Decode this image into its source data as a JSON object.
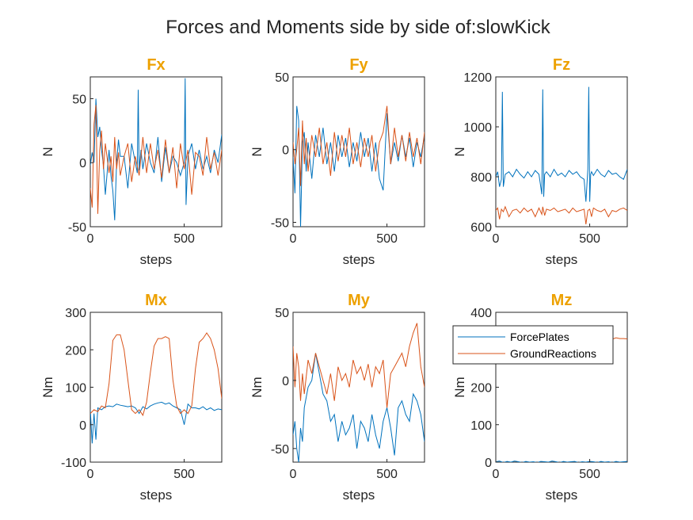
{
  "figure": {
    "title": "Forces and Moments side by side of:slowKick"
  },
  "colors": {
    "force_plates": "#0072BD",
    "ground_reactions": "#D95319",
    "subplot_title": "#EDA100",
    "axis": "#262626"
  },
  "legend": {
    "placement": "inside Mz subplot, upper-left",
    "entries": [
      "ForcePlates",
      "GroundReactions"
    ]
  },
  "chart_data": [
    {
      "type": "line",
      "title": "Fx",
      "xlabel": "steps",
      "ylabel": "N",
      "xlim": [
        0,
        700
      ],
      "ylim": [
        -50,
        67
      ],
      "xticks": [
        "0",
        "500"
      ],
      "xtick_values": [
        0,
        500
      ],
      "yticks": [
        "-50",
        "0",
        "50"
      ],
      "ytick_values": [
        -50,
        0,
        50
      ],
      "series": [
        {
          "name": "ForcePlates",
          "x": [
            0,
            10,
            20,
            30,
            40,
            50,
            60,
            70,
            80,
            100,
            110,
            120,
            130,
            140,
            150,
            160,
            180,
            200,
            220,
            240,
            250,
            255,
            260,
            270,
            280,
            300,
            320,
            340,
            360,
            380,
            400,
            420,
            440,
            460,
            480,
            500,
            505,
            510,
            520,
            540,
            560,
            580,
            600,
            620,
            640,
            660,
            680,
            700
          ],
          "y": [
            -2,
            8,
            0,
            50,
            20,
            28,
            10,
            -2,
            -25,
            10,
            -10,
            -22,
            -45,
            0,
            18,
            5,
            5,
            -20,
            15,
            0,
            -8,
            57,
            -6,
            10,
            -5,
            15,
            0,
            -8,
            20,
            -15,
            12,
            -8,
            5,
            0,
            -10,
            0,
            66,
            -33,
            5,
            15,
            -5,
            10,
            -5,
            5,
            -8,
            10,
            0,
            22
          ]
        },
        {
          "name": "GroundReactions",
          "x": [
            0,
            10,
            20,
            30,
            40,
            50,
            60,
            70,
            80,
            100,
            110,
            120,
            130,
            140,
            150,
            160,
            180,
            200,
            220,
            240,
            260,
            280,
            300,
            320,
            340,
            360,
            380,
            400,
            420,
            440,
            460,
            480,
            500,
            520,
            540,
            560,
            580,
            600,
            620,
            640,
            660,
            680,
            700
          ],
          "y": [
            -20,
            -35,
            30,
            45,
            -40,
            10,
            25,
            -5,
            15,
            -8,
            5,
            -15,
            20,
            -5,
            8,
            -10,
            5,
            15,
            -15,
            5,
            -10,
            20,
            -8,
            15,
            -5,
            10,
            -12,
            18,
            -8,
            12,
            -20,
            15,
            -5,
            10,
            -25,
            8,
            5,
            -10,
            20,
            -5,
            8,
            -10,
            10
          ]
        }
      ]
    },
    {
      "type": "line",
      "title": "Fy",
      "xlabel": "steps",
      "ylabel": "N",
      "xlim": [
        0,
        700
      ],
      "ylim": [
        -53,
        50
      ],
      "xticks": [
        "0",
        "500"
      ],
      "xtick_values": [
        0,
        500
      ],
      "yticks": [
        "-50",
        "0",
        "50"
      ],
      "ytick_values": [
        -50,
        0,
        50
      ],
      "series": [
        {
          "name": "ForcePlates",
          "x": [
            0,
            10,
            20,
            30,
            40,
            50,
            60,
            70,
            80,
            100,
            120,
            140,
            160,
            180,
            200,
            220,
            240,
            260,
            280,
            300,
            320,
            340,
            360,
            380,
            400,
            420,
            440,
            460,
            480,
            500,
            520,
            540,
            560,
            580,
            600,
            620,
            640,
            660,
            680,
            700
          ],
          "y": [
            -5,
            -30,
            30,
            20,
            -53,
            5,
            12,
            -15,
            5,
            -20,
            10,
            -5,
            15,
            -10,
            5,
            -15,
            10,
            -5,
            8,
            -12,
            5,
            -8,
            12,
            -5,
            8,
            -15,
            5,
            -20,
            -28,
            25,
            -10,
            5,
            -8,
            10,
            -5,
            8,
            -12,
            5,
            -5,
            10
          ]
        },
        {
          "name": "GroundReactions",
          "x": [
            0,
            10,
            20,
            30,
            40,
            50,
            60,
            70,
            80,
            100,
            120,
            140,
            160,
            180,
            200,
            220,
            240,
            260,
            280,
            300,
            320,
            340,
            360,
            380,
            400,
            420,
            440,
            460,
            480,
            500,
            520,
            540,
            560,
            580,
            600,
            620,
            640,
            660,
            680,
            700
          ],
          "y": [
            5,
            -10,
            0,
            15,
            -25,
            20,
            -10,
            8,
            -15,
            10,
            -5,
            15,
            -10,
            5,
            -18,
            12,
            -8,
            10,
            -5,
            15,
            -10,
            5,
            -12,
            8,
            -5,
            10,
            -15,
            5,
            12,
            30,
            -10,
            15,
            -5,
            10,
            -8,
            12,
            -5,
            8,
            -10,
            12
          ]
        }
      ]
    },
    {
      "type": "line",
      "title": "Fz",
      "xlabel": "steps",
      "ylabel": "N",
      "xlim": [
        0,
        700
      ],
      "ylim": [
        600,
        1200
      ],
      "xticks": [
        "0",
        "500"
      ],
      "xtick_values": [
        0,
        500
      ],
      "yticks": [
        "600",
        "800",
        "1000",
        "1200"
      ],
      "ytick_values": [
        600,
        800,
        1000,
        1200
      ],
      "series": [
        {
          "name": "ForcePlates",
          "x": [
            0,
            10,
            20,
            30,
            35,
            40,
            50,
            70,
            90,
            110,
            130,
            150,
            170,
            190,
            210,
            230,
            245,
            250,
            255,
            260,
            270,
            290,
            310,
            330,
            350,
            370,
            390,
            410,
            430,
            450,
            470,
            480,
            490,
            495,
            500,
            505,
            510,
            520,
            540,
            560,
            580,
            600,
            620,
            640,
            660,
            680,
            700
          ],
          "y": [
            800,
            820,
            760,
            790,
            1140,
            760,
            810,
            820,
            800,
            830,
            810,
            795,
            820,
            800,
            825,
            810,
            730,
            1150,
            720,
            810,
            820,
            800,
            830,
            805,
            815,
            800,
            825,
            810,
            820,
            800,
            790,
            700,
            830,
            1160,
            700,
            810,
            820,
            805,
            830,
            810,
            800,
            825,
            810,
            815,
            800,
            790,
            830
          ]
        },
        {
          "name": "GroundReactions",
          "x": [
            0,
            10,
            20,
            30,
            40,
            50,
            70,
            90,
            110,
            130,
            150,
            170,
            190,
            210,
            230,
            245,
            250,
            260,
            270,
            290,
            310,
            330,
            350,
            370,
            390,
            410,
            430,
            450,
            470,
            480,
            490,
            500,
            510,
            520,
            540,
            560,
            580,
            600,
            620,
            640,
            660,
            680,
            700
          ],
          "y": [
            665,
            675,
            630,
            670,
            660,
            680,
            640,
            665,
            670,
            655,
            675,
            660,
            670,
            640,
            675,
            650,
            680,
            645,
            670,
            665,
            675,
            660,
            665,
            670,
            655,
            675,
            660,
            665,
            670,
            610,
            665,
            670,
            640,
            675,
            665,
            660,
            670,
            640,
            665,
            660,
            670,
            675,
            665
          ]
        }
      ]
    },
    {
      "type": "line",
      "title": "Mx",
      "xlabel": "steps",
      "ylabel": "Nm",
      "xlim": [
        0,
        700
      ],
      "ylim": [
        -100,
        300
      ],
      "xticks": [
        "0",
        "500"
      ],
      "xtick_values": [
        0,
        500
      ],
      "yticks": [
        "-100",
        "0",
        "100",
        "200",
        "300"
      ],
      "ytick_values": [
        -100,
        0,
        100,
        200,
        300
      ],
      "series": [
        {
          "name": "ForcePlates",
          "x": [
            0,
            10,
            20,
            30,
            40,
            60,
            80,
            100,
            120,
            140,
            160,
            180,
            200,
            220,
            240,
            260,
            280,
            300,
            320,
            340,
            360,
            380,
            400,
            420,
            440,
            460,
            480,
            500,
            520,
            540,
            560,
            580,
            600,
            620,
            640,
            660,
            680,
            700
          ],
          "y": [
            40,
            -50,
            30,
            -40,
            45,
            40,
            48,
            50,
            48,
            55,
            52,
            50,
            48,
            50,
            45,
            30,
            48,
            42,
            50,
            55,
            58,
            60,
            55,
            58,
            50,
            45,
            40,
            0,
            55,
            45,
            45,
            42,
            48,
            40,
            45,
            38,
            42,
            40
          ]
        },
        {
          "name": "GroundReactions",
          "x": [
            0,
            20,
            40,
            60,
            80,
            100,
            120,
            140,
            160,
            180,
            200,
            220,
            240,
            260,
            280,
            300,
            320,
            340,
            360,
            380,
            400,
            420,
            440,
            460,
            480,
            500,
            520,
            540,
            560,
            580,
            600,
            620,
            640,
            660,
            680,
            700
          ],
          "y": [
            30,
            40,
            35,
            50,
            45,
            110,
            225,
            240,
            240,
            200,
            120,
            40,
            30,
            40,
            25,
            60,
            140,
            210,
            230,
            230,
            235,
            230,
            120,
            50,
            30,
            40,
            30,
            50,
            150,
            220,
            230,
            245,
            230,
            200,
            150,
            70
          ]
        }
      ]
    },
    {
      "type": "line",
      "title": "My",
      "xlabel": "steps",
      "ylabel": "Nm",
      "xlim": [
        0,
        700
      ],
      "ylim": [
        -60,
        50
      ],
      "xticks": [
        "0",
        "500"
      ],
      "xtick_values": [
        0,
        500
      ],
      "yticks": [
        "-50",
        "0",
        "50"
      ],
      "ytick_values": [
        -50,
        0,
        50
      ],
      "series": [
        {
          "name": "ForcePlates",
          "x": [
            0,
            10,
            20,
            30,
            40,
            50,
            60,
            80,
            100,
            120,
            140,
            160,
            180,
            200,
            220,
            240,
            260,
            280,
            300,
            320,
            340,
            360,
            380,
            400,
            420,
            440,
            460,
            480,
            500,
            520,
            540,
            560,
            580,
            600,
            620,
            640,
            660,
            680,
            700
          ],
          "y": [
            -40,
            -30,
            -50,
            -60,
            -35,
            -45,
            -20,
            -5,
            0,
            20,
            5,
            -10,
            -15,
            -30,
            -25,
            -45,
            -30,
            -40,
            -35,
            -25,
            -50,
            -30,
            -35,
            -45,
            -25,
            -40,
            -50,
            -30,
            -20,
            -35,
            -55,
            -20,
            -15,
            -25,
            -30,
            -10,
            -15,
            -25,
            -45
          ]
        },
        {
          "name": "GroundReactions",
          "x": [
            0,
            10,
            20,
            30,
            40,
            50,
            60,
            80,
            100,
            120,
            140,
            160,
            180,
            200,
            220,
            240,
            260,
            280,
            300,
            320,
            340,
            360,
            380,
            400,
            420,
            440,
            460,
            480,
            500,
            520,
            540,
            560,
            580,
            600,
            620,
            640,
            660,
            680,
            700
          ],
          "y": [
            25,
            -5,
            20,
            10,
            -15,
            5,
            -10,
            15,
            5,
            20,
            10,
            0,
            -10,
            5,
            -15,
            10,
            0,
            5,
            -5,
            15,
            5,
            10,
            0,
            12,
            -5,
            10,
            5,
            15,
            -20,
            5,
            10,
            15,
            20,
            10,
            25,
            35,
            42,
            10,
            -5
          ]
        }
      ]
    },
    {
      "type": "line",
      "title": "Mz",
      "xlabel": "steps",
      "ylabel": "Nm",
      "xlim": [
        0,
        700
      ],
      "ylim": [
        0,
        400
      ],
      "xticks": [
        "0",
        "500"
      ],
      "xtick_values": [
        0,
        500
      ],
      "yticks": [
        "0",
        "100",
        "200",
        "300",
        "400"
      ],
      "ytick_values": [
        0,
        100,
        200,
        300,
        400
      ],
      "series": [
        {
          "name": "ForcePlates",
          "x": [
            0,
            20,
            40,
            60,
            80,
            100,
            120,
            140,
            160,
            180,
            200,
            220,
            240,
            260,
            280,
            300,
            320,
            340,
            360,
            380,
            400,
            420,
            440,
            460,
            480,
            500,
            520,
            540,
            560,
            580,
            600,
            620,
            640,
            660,
            680,
            700
          ],
          "y": [
            1,
            3,
            -1,
            2,
            0,
            3,
            1,
            -1,
            2,
            0,
            1,
            -1,
            2,
            1,
            0,
            3,
            1,
            -1,
            2,
            0,
            1,
            2,
            -1,
            1,
            0,
            2,
            1,
            -1,
            2,
            0,
            1,
            -1,
            2,
            0,
            1,
            2
          ]
        },
        {
          "name": "GroundReactions",
          "x": [
            0,
            100,
            200,
            300,
            400,
            500,
            600,
            620,
            640,
            660,
            680,
            700
          ],
          "y": [
            335,
            330,
            332,
            330,
            334,
            331,
            330,
            328,
            332,
            330,
            330,
            329
          ]
        }
      ]
    }
  ]
}
